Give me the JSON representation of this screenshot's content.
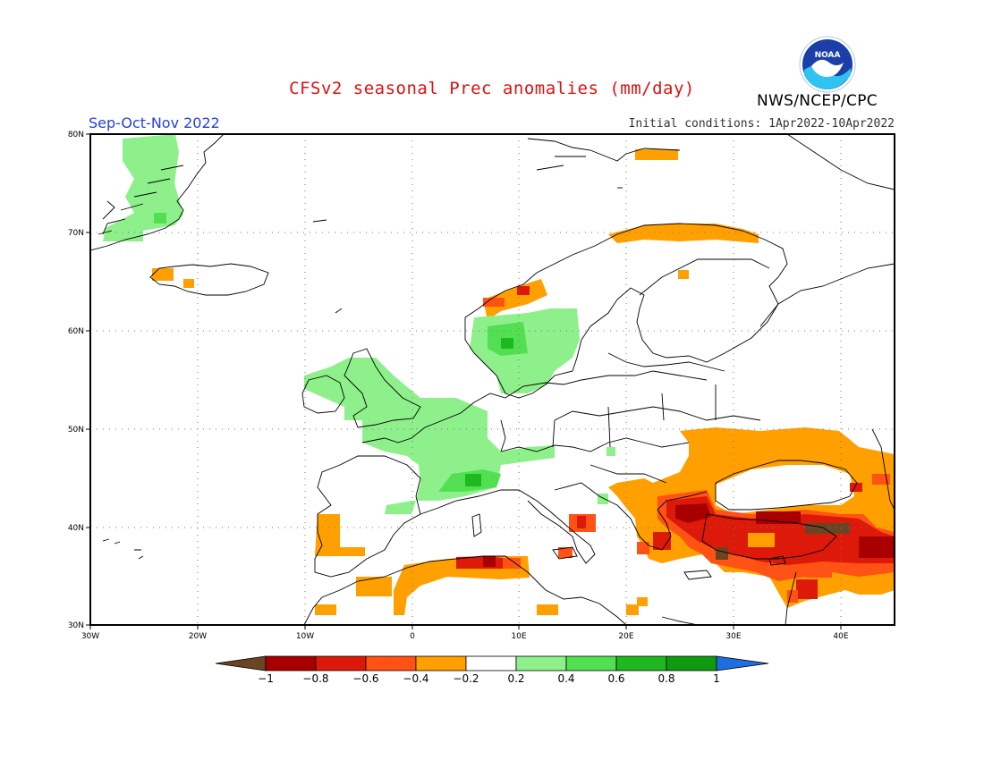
{
  "header": {
    "title": "CFSv2 seasonal Prec anomalies (mm/day)",
    "season": "Sep-Oct-Nov 2022",
    "initial_conditions": "Initial conditions: 1Apr2022-10Apr2022",
    "agency": "NWS/NCEP/CPC",
    "logo_text": "NOAA"
  },
  "map": {
    "lat_labels": [
      "80N",
      "70N",
      "60N",
      "50N",
      "40N",
      "30N"
    ],
    "lon_labels": [
      "30W",
      "20W",
      "10W",
      "0",
      "10E",
      "20E",
      "30E",
      "40E"
    ],
    "lon_range": [
      -30,
      45
    ],
    "lat_range": [
      30,
      80
    ],
    "grid": "dotted"
  },
  "colorbar": {
    "tick_labels": [
      "-1",
      "-0.8",
      "-0.6",
      "-0.4",
      "-0.2",
      "0.2",
      "0.4",
      "0.6",
      "0.8",
      "1"
    ],
    "colors": [
      "#6b4423",
      "#a80000",
      "#dd1a0a",
      "#ff5214",
      "#ff9f00",
      "#ffffff",
      "#8ef08a",
      "#52e052",
      "#20b820",
      "#0f9a0f",
      "#1e6ee0"
    ]
  }
}
